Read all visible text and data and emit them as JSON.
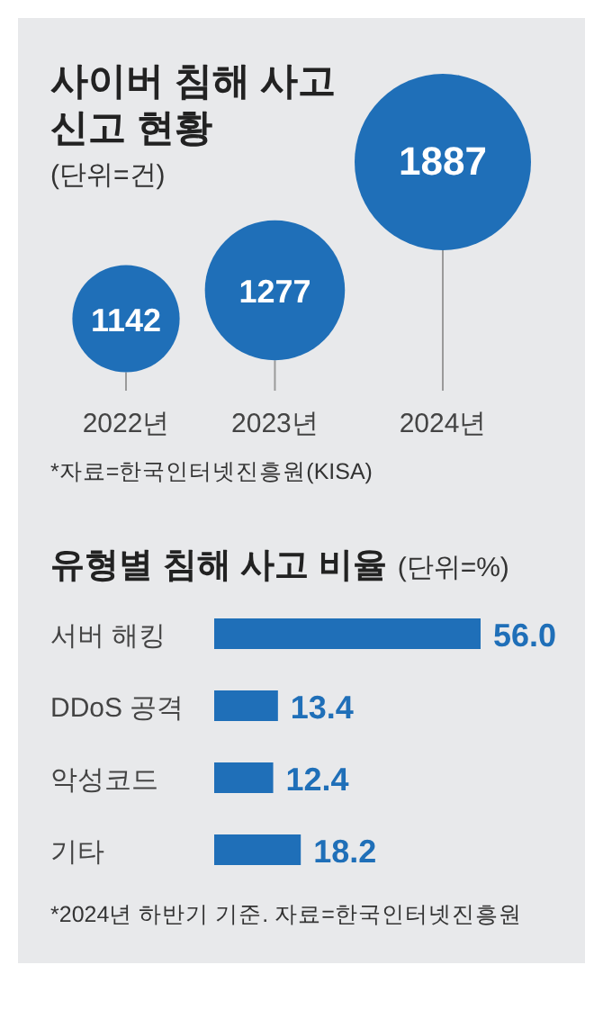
{
  "chart_data": [
    {
      "type": "bubble",
      "title": "사이버 침해 사고\n신고 현황",
      "subtitle": "(단위=건)",
      "categories": [
        "2022년",
        "2023년",
        "2024년"
      ],
      "values": [
        1142,
        1277,
        1887
      ],
      "sizes": [
        0.37,
        0.63,
        1
      ],
      "color": "#1f6fb8",
      "data_labels": true,
      "annotations": [
        "*자료=한국인터넷진흥원(KISA)"
      ]
    },
    {
      "type": "bar",
      "orientation": "horizontal",
      "title": "유형별 침해 사고 비율",
      "subtitle": "(단위=%)",
      "categories": [
        "서버 해킹",
        "DDoS 공격",
        "악성코드",
        "기타"
      ],
      "values": [
        56.0,
        13.4,
        12.4,
        18.2
      ],
      "value_labels": [
        "56.0",
        "13.4",
        "12.4",
        "18.2"
      ],
      "color": "#1f6fb8",
      "annotations": [
        "*2024년 하반기 기준. 자료=한국인터넷진흥원"
      ]
    }
  ]
}
